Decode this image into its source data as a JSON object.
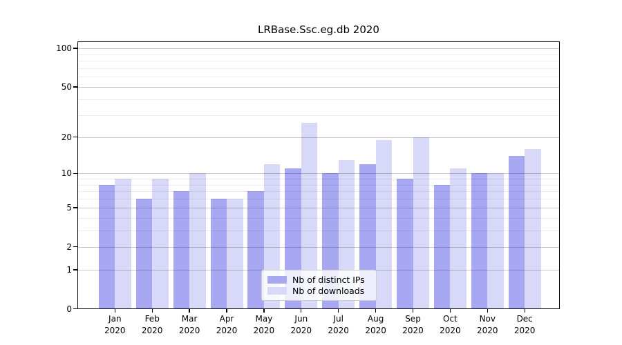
{
  "title": "LRBase.Ssc.eg.db 2020",
  "chart_data": {
    "type": "bar",
    "title": "LRBase.Ssc.eg.db 2020",
    "categories": [
      "Jan",
      "Feb",
      "Mar",
      "Apr",
      "May",
      "Jun",
      "Jul",
      "Aug",
      "Sep",
      "Oct",
      "Nov",
      "Dec"
    ],
    "year_label": "2020",
    "series": [
      {
        "name": "Nb of distinct IPs",
        "color": "#a8a8f2",
        "values": [
          8,
          6,
          7,
          6,
          7,
          11,
          10,
          12,
          9,
          8,
          10,
          14
        ]
      },
      {
        "name": "Nb of downloads",
        "color": "#d8d8f8",
        "values": [
          9,
          9,
          10,
          6,
          12,
          26,
          13,
          19,
          20,
          11,
          10,
          16
        ]
      }
    ],
    "yscale": "log10(1+v)",
    "ylim": [
      0,
      114
    ],
    "yticks": [
      0,
      1,
      2,
      5,
      10,
      20,
      50,
      100
    ],
    "minor_gridlines": [
      3,
      4,
      6,
      7,
      8,
      9,
      30,
      40,
      60,
      70,
      80,
      90
    ],
    "grid": true,
    "xlabel": "",
    "ylabel": "",
    "legend_position": "lower center"
  },
  "colors": {
    "background": "#ffffff",
    "bar_ips": "#a8a8f2",
    "bar_downloads": "#d8d8f8",
    "major_grid": "rgba(0,0,0,0.22)",
    "minor_grid": "rgba(0,0,0,0.08)",
    "frame": "#000000",
    "legend_border": "#cccccc"
  }
}
